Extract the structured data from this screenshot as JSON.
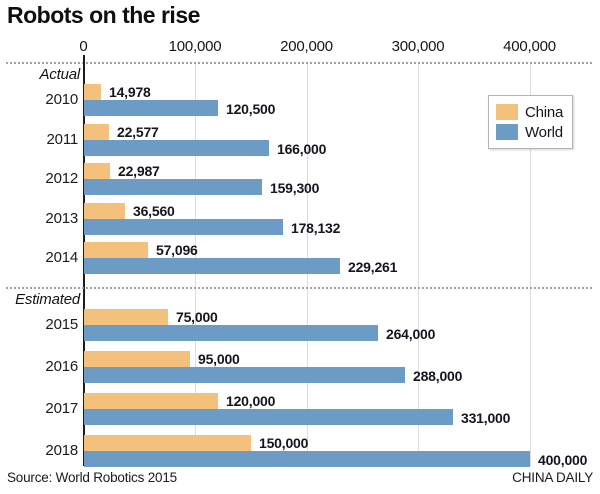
{
  "title": "Robots on the rise",
  "source": "Source: World Robotics 2015",
  "credit": "CHINA DAILY",
  "legend": [
    {
      "label": "China",
      "color": "#f4c17c"
    },
    {
      "label": "World",
      "color": "#6c9cc6"
    }
  ],
  "colors": {
    "china_bar": "#f4c17c",
    "world_bar": "#6c9cc6",
    "gridline": "#dcdcdc",
    "axis": "#1c1c1c",
    "text": "#15151f"
  },
  "chart_data": {
    "type": "bar",
    "orientation": "horizontal",
    "title": "Robots on the rise",
    "xlabel": "",
    "ylabel": "",
    "xlim": [
      0,
      400000
    ],
    "grid": true,
    "legend_position": "top-right",
    "x_ticks": [
      0,
      100000,
      200000,
      300000,
      400000
    ],
    "x_tick_labels": [
      "0",
      "100,000",
      "200,000",
      "300,000",
      "400,000"
    ],
    "series_names": [
      "China",
      "World"
    ],
    "sections": [
      {
        "label": "Actual",
        "rows": [
          {
            "year": "2010",
            "china": 14978,
            "china_label": "14,978",
            "world": 120500,
            "world_label": "120,500"
          },
          {
            "year": "2011",
            "china": 22577,
            "china_label": "22,577",
            "world": 166000,
            "world_label": "166,000"
          },
          {
            "year": "2012",
            "china": 22987,
            "china_label": "22,987",
            "world": 159300,
            "world_label": "159,300"
          },
          {
            "year": "2013",
            "china": 36560,
            "china_label": "36,560",
            "world": 178132,
            "world_label": "178,132"
          },
          {
            "year": "2014",
            "china": 57096,
            "china_label": "57,096",
            "world": 229261,
            "world_label": "229,261"
          }
        ]
      },
      {
        "label": "Estimated",
        "rows": [
          {
            "year": "2015",
            "china": 75000,
            "china_label": "75,000",
            "world": 264000,
            "world_label": "264,000"
          },
          {
            "year": "2016",
            "china": 95000,
            "china_label": "95,000",
            "world": 288000,
            "world_label": "288,000"
          },
          {
            "year": "2017",
            "china": 120000,
            "china_label": "120,000",
            "world": 331000,
            "world_label": "331,000"
          },
          {
            "year": "2018",
            "china": 150000,
            "china_label": "150,000",
            "world": 400000,
            "world_label": "400,000"
          }
        ]
      }
    ]
  }
}
